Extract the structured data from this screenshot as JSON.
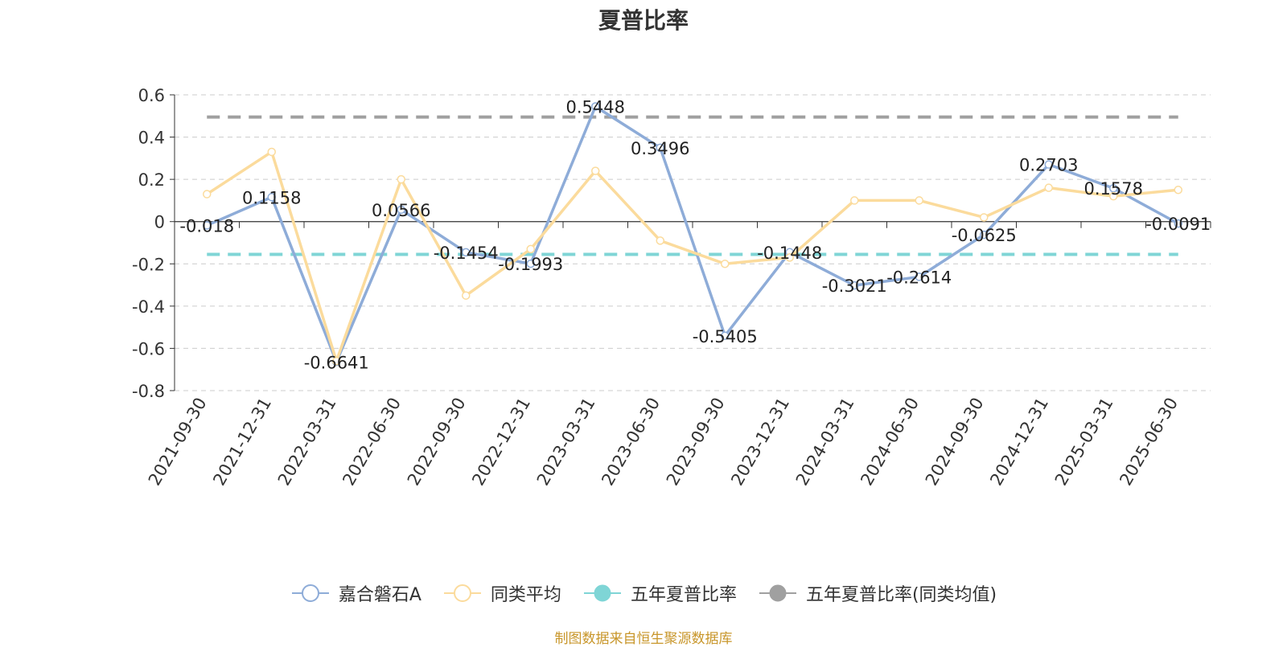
{
  "chart_data": {
    "type": "line",
    "title": "夏普比率",
    "x": [
      "2021-09-30",
      "2021-12-31",
      "2022-03-31",
      "2022-06-30",
      "2022-09-30",
      "2022-12-31",
      "2023-03-31",
      "2023-06-30",
      "2023-09-30",
      "2023-12-31",
      "2024-03-31",
      "2024-06-30",
      "2024-09-30",
      "2024-12-31",
      "2025-03-31",
      "2025-06-30"
    ],
    "ylim": [
      -0.8,
      0.6
    ],
    "yticks": [
      "0.6",
      "0.4",
      "0.2",
      "0",
      "-0.2",
      "-0.4",
      "-0.6",
      "-0.8"
    ],
    "grid": true,
    "legend_position": "bottom",
    "series": [
      {
        "name": "嘉合磐石A",
        "color": "#8eacd8",
        "values": [
          -0.018,
          0.1158,
          -0.6641,
          0.0566,
          -0.1454,
          -0.1993,
          0.5448,
          0.3496,
          -0.5405,
          -0.1448,
          -0.3021,
          -0.2614,
          -0.0625,
          0.2703,
          0.1578,
          -0.0091
        ],
        "labels": [
          "-0.018",
          "0.1158",
          "-0.6641",
          "0.0566",
          "-0.1454",
          "-0.1993",
          "0.5448",
          "0.3496",
          "-0.5405",
          "-0.1448",
          "-0.3021",
          "-0.2614",
          "-0.0625",
          "0.2703",
          "0.1578",
          "-0.0091"
        ]
      },
      {
        "name": "同类平均",
        "color": "#fbdb9c",
        "values": [
          0.13,
          0.33,
          -0.66,
          0.2,
          -0.35,
          -0.13,
          0.24,
          -0.09,
          -0.2,
          -0.17,
          0.1,
          0.1,
          0.02,
          0.16,
          0.12,
          0.15
        ]
      },
      {
        "name": "五年夏普比率",
        "color": "#7fd5d6",
        "constant": -0.155
      },
      {
        "name": "五年夏普比率(同类均值)",
        "color": "#a0a0a0",
        "constant": 0.495
      }
    ]
  },
  "source_note": "制图数据来自恒生聚源数据库"
}
